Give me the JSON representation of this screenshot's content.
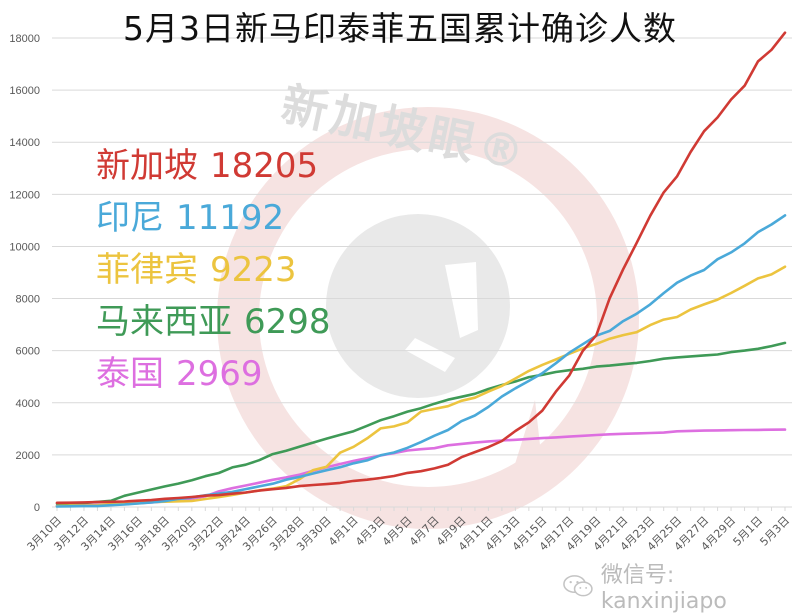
{
  "header": {
    "title": "5月3日新马印泰菲五国累计确诊人数"
  },
  "watermarks": {
    "logo_text": "新加坡眼®",
    "wechat_label": "微信号: kanxinjiapo",
    "wechat_icon": "wechat-icon"
  },
  "legend": {
    "items": [
      {
        "name": "新加坡",
        "value": "18205",
        "color": "#d03a34"
      },
      {
        "name": "印尼",
        "value": "11192",
        "color": "#4aa9d9"
      },
      {
        "name": "菲律宾",
        "value": "9223",
        "color": "#ecc43f"
      },
      {
        "name": "马来西亚",
        "value": "6298",
        "color": "#3f9a57"
      },
      {
        "name": "泰国",
        "value": "2969",
        "color": "#dd6fe0"
      }
    ]
  },
  "chart_data": {
    "type": "line",
    "title": "5月3日新马印泰菲五国累计确诊人数",
    "xlabel": "",
    "ylabel": "",
    "ylim": [
      0,
      18000
    ],
    "yticks": [
      0,
      2000,
      4000,
      6000,
      8000,
      10000,
      12000,
      14000,
      16000,
      18000
    ],
    "grid": true,
    "legend_position": "upper-left (inline colored labels)",
    "x": [
      "3月10日",
      "3月11日",
      "3月12日",
      "3月13日",
      "3月14日",
      "3月15日",
      "3月16日",
      "3月17日",
      "3月18日",
      "3月19日",
      "3月20日",
      "3月21日",
      "3月22日",
      "3月23日",
      "3月24日",
      "3月25日",
      "3月26日",
      "3月27日",
      "3月28日",
      "3月29日",
      "3月30日",
      "3月31日",
      "4月1日",
      "4月2日",
      "4月3日",
      "4月4日",
      "4月5日",
      "4月6日",
      "4月7日",
      "4月8日",
      "4月9日",
      "4月10日",
      "4月11日",
      "4月12日",
      "4月13日",
      "4月14日",
      "4月15日",
      "4月16日",
      "4月17日",
      "4月18日",
      "4月19日",
      "4月20日",
      "4月21日",
      "4月22日",
      "4月23日",
      "4月24日",
      "4月25日",
      "4月26日",
      "4月27日",
      "4月28日",
      "4月29日",
      "4月30日",
      "5月1日",
      "5月2日",
      "5月3日"
    ],
    "x_tick_labels": [
      "3月10日",
      "3月12日",
      "3月14日",
      "3月16日",
      "3月18日",
      "3月20日",
      "3月22日",
      "3月24日",
      "3月26日",
      "3月28日",
      "3月30日",
      "4月1日",
      "4月3日",
      "4月5日",
      "4月7日",
      "4月9日",
      "4月11日",
      "4月13日",
      "4月15日",
      "4月17日",
      "4月19日",
      "4月21日",
      "4月23日",
      "4月25日",
      "4月27日",
      "4月29日",
      "5月1日",
      "5月3日"
    ],
    "series": [
      {
        "name": "新加坡",
        "color": "#d03a34",
        "values": [
          160,
          166,
          178,
          187,
          200,
          212,
          243,
          266,
          313,
          345,
          385,
          432,
          455,
          509,
          558,
          631,
          683,
          732,
          802,
          844,
          879,
          926,
          1000,
          1049,
          1114,
          1189,
          1309,
          1375,
          1481,
          1623,
          1910,
          2108,
          2299,
          2532,
          2918,
          3252,
          3699,
          4427,
          5050,
          5992,
          6588,
          8014,
          9125,
          10141,
          11178,
          12075,
          12693,
          13624,
          14423,
          14951,
          15641,
          16169,
          17101,
          17548,
          18205
        ]
      },
      {
        "name": "印尼",
        "color": "#4aa9d9",
        "values": [
          19,
          27,
          34,
          34,
          69,
          96,
          134,
          172,
          227,
          309,
          369,
          450,
          514,
          579,
          686,
          790,
          893,
          1046,
          1155,
          1285,
          1414,
          1528,
          1677,
          1790,
          1986,
          2092,
          2273,
          2491,
          2738,
          2956,
          3293,
          3512,
          3842,
          4241,
          4557,
          4839,
          5136,
          5516,
          5923,
          6248,
          6575,
          6760,
          7135,
          7418,
          7775,
          8211,
          8607,
          8882,
          9096,
          9511,
          9771,
          10118,
          10551,
          10843,
          11192
        ]
      },
      {
        "name": "菲律宾",
        "color": "#ecc43f",
        "values": [
          33,
          49,
          52,
          64,
          111,
          140,
          142,
          187,
          202,
          217,
          230,
          307,
          380,
          462,
          552,
          636,
          707,
          803,
          1075,
          1418,
          1546,
          2084,
          2311,
          2633,
          3018,
          3094,
          3246,
          3660,
          3764,
          3870,
          4076,
          4195,
          4428,
          4648,
          4932,
          5223,
          5453,
          5660,
          5878,
          6087,
          6259,
          6459,
          6599,
          6710,
          6981,
          7192,
          7294,
          7579,
          7777,
          7958,
          8212,
          8488,
          8772,
          8928,
          9223
        ]
      },
      {
        "name": "马来西亚",
        "color": "#3f9a57",
        "values": [
          129,
          149,
          158,
          197,
          238,
          428,
          553,
          673,
          790,
          900,
          1030,
          1183,
          1306,
          1518,
          1624,
          1796,
          2031,
          2161,
          2320,
          2470,
          2626,
          2766,
          2908,
          3116,
          3333,
          3483,
          3662,
          3793,
          3963,
          4119,
          4228,
          4346,
          4530,
          4683,
          4817,
          4987,
          5072,
          5182,
          5251,
          5305,
          5389,
          5425,
          5482,
          5532,
          5603,
          5691,
          5742,
          5780,
          5820,
          5851,
          5945,
          6002,
          6071,
          6176,
          6298
        ]
      },
      {
        "name": "泰国",
        "color": "#dd6fe0",
        "values": [
          53,
          59,
          70,
          75,
          82,
          114,
          147,
          177,
          212,
          272,
          322,
          411,
          599,
          721,
          827,
          934,
          1045,
          1136,
          1245,
          1388,
          1524,
          1651,
          1771,
          1875,
          1978,
          2067,
          2169,
          2220,
          2258,
          2369,
          2423,
          2473,
          2518,
          2551,
          2579,
          2613,
          2643,
          2672,
          2700,
          2733,
          2765,
          2792,
          2811,
          2826,
          2839,
          2854,
          2907,
          2922,
          2931,
          2938,
          2947,
          2954,
          2960,
          2966,
          2969
        ]
      }
    ]
  }
}
